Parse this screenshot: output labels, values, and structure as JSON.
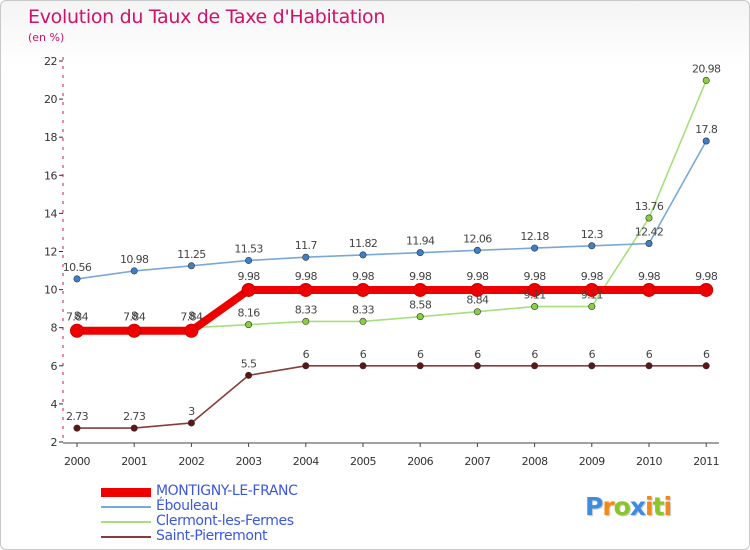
{
  "title": "Evolution du Taux de Taxe d'Habitation",
  "subtitle": "(en %)",
  "logo": {
    "text": "Proxiti",
    "letter_colors": [
      "#3c8de0",
      "#ef8a16",
      "#8ac62a",
      "#3c8de0",
      "#ef8a16",
      "#8ac62a",
      "#ef8a16"
    ]
  },
  "chart_data": {
    "type": "line",
    "title": "Evolution du Taux de Taxe d'Habitation",
    "ylabel": "(en %)",
    "xlabel": "",
    "ylim": [
      2,
      22
    ],
    "yticks": [
      "2",
      "4",
      "6",
      "8",
      "10",
      "12",
      "14",
      "16",
      "18",
      "20",
      "22"
    ],
    "x": [
      "2000",
      "2001",
      "2002",
      "2003",
      "2004",
      "2005",
      "2006",
      "2007",
      "2008",
      "2009",
      "2010",
      "2011"
    ],
    "grid": false,
    "legend_position": "bottom-left",
    "series": [
      {
        "name": "MONTIGNY-LE-FRANC",
        "color": "#ee0000",
        "marker": "#ee0000",
        "values": [
          7.84,
          7.84,
          7.84,
          9.98,
          9.98,
          9.98,
          9.98,
          9.98,
          9.98,
          9.98,
          9.98,
          9.98
        ],
        "labels": [
          "7.84",
          "7.84",
          "7.84",
          "9.98",
          "9.98",
          "9.98",
          "9.98",
          "9.98",
          "9.98",
          "9.98",
          "9.98",
          "9.98"
        ]
      },
      {
        "name": "Ébouleau",
        "color": "#7aa8d8",
        "marker": "#3d7fc8",
        "values": [
          10.56,
          10.98,
          11.25,
          11.53,
          11.7,
          11.82,
          11.94,
          12.06,
          12.18,
          12.3,
          12.42,
          17.8
        ],
        "labels": [
          "10.56",
          "10.98",
          "11.25",
          "11.53",
          "11.7",
          "11.82",
          "11.94",
          "12.06",
          "12.18",
          "12.3",
          "12.42",
          "17.8"
        ]
      },
      {
        "name": "Clermont-les-Fermes",
        "color": "#a6df7c",
        "marker": "#88d040",
        "values": [
          8,
          8,
          8,
          8.16,
          8.33,
          8.33,
          8.58,
          8.84,
          9.11,
          9.11,
          13.76,
          20.98
        ],
        "labels": [
          "8",
          "8",
          "8",
          "8.16",
          "8.33",
          "8.33",
          "8.58",
          "8.84",
          "9.11",
          "9.11",
          "13.76",
          "20.98"
        ]
      },
      {
        "name": "Saint-Pierremont",
        "color": "#8a3b3b",
        "marker": "#5c1616",
        "values": [
          2.73,
          2.73,
          3,
          5.5,
          6,
          6,
          6,
          6,
          6,
          6,
          6,
          6
        ],
        "labels": [
          "2.73",
          "2.73",
          "3",
          "5.5",
          "6",
          "6",
          "6",
          "6",
          "6",
          "6",
          "6",
          "6"
        ]
      }
    ]
  },
  "legend": [
    {
      "label": "MONTIGNY-LE-FRANC",
      "color": "#ee0000"
    },
    {
      "label": "Ébouleau",
      "color": "#7aa8d8"
    },
    {
      "label": "Clermont-les-Fermes",
      "color": "#a6df7c"
    },
    {
      "label": "Saint-Pierremont",
      "color": "#8a3b3b"
    }
  ]
}
